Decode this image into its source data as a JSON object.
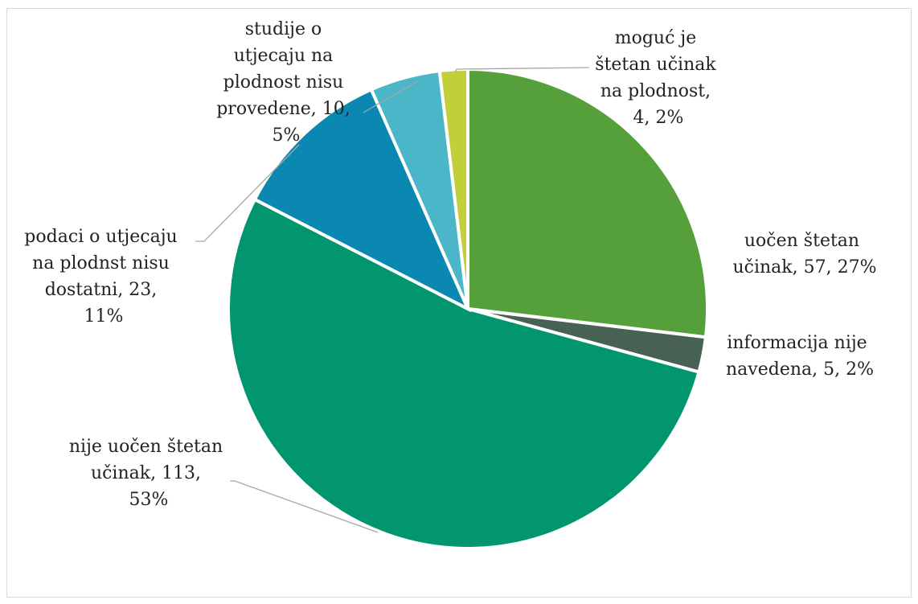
{
  "chart_data": {
    "type": "pie",
    "start_angle_deg": 0,
    "direction": "clockwise",
    "slices": [
      {
        "label": "uočen štetan učinak",
        "value": 57,
        "percent": "27%",
        "color": "#56a03c"
      },
      {
        "label": "informacija nije navedena",
        "value": 5,
        "percent": "2%",
        "color": "#476152"
      },
      {
        "label": "nije uočen štetan učinak",
        "value": 113,
        "percent": "53%",
        "color": "#02966f"
      },
      {
        "label": "podaci o utjecaju na plodnst nisu dostatni",
        "value": 23,
        "percent": "11%",
        "color": "#0a88b2"
      },
      {
        "label": "studije o utjecaju na plodnost nisu provedene",
        "value": 10,
        "percent": "5%",
        "color": "#4bb6c7"
      },
      {
        "label": "moguć je štetan učinak na plodnost",
        "value": 4,
        "percent": "2%",
        "color": "#c3cf3a"
      }
    ],
    "data_labels": [
      [
        "uočen štetan",
        "učinak, 57, 27%"
      ],
      [
        "informacija nije",
        "navedena, 5, 2%"
      ],
      [
        "nije uočen štetan",
        "učinak, 113,",
        "53%"
      ],
      [
        "podaci o utjecaju",
        "na plodnst nisu",
        "dostatni, 23,",
        "11%"
      ],
      [
        "studije o",
        "utjecaju na",
        "plodnost nisu",
        "provedene, 10,",
        "5%"
      ],
      [
        "moguć je",
        "štetan učinak",
        "na plodnost,",
        "4, 2%"
      ]
    ]
  }
}
